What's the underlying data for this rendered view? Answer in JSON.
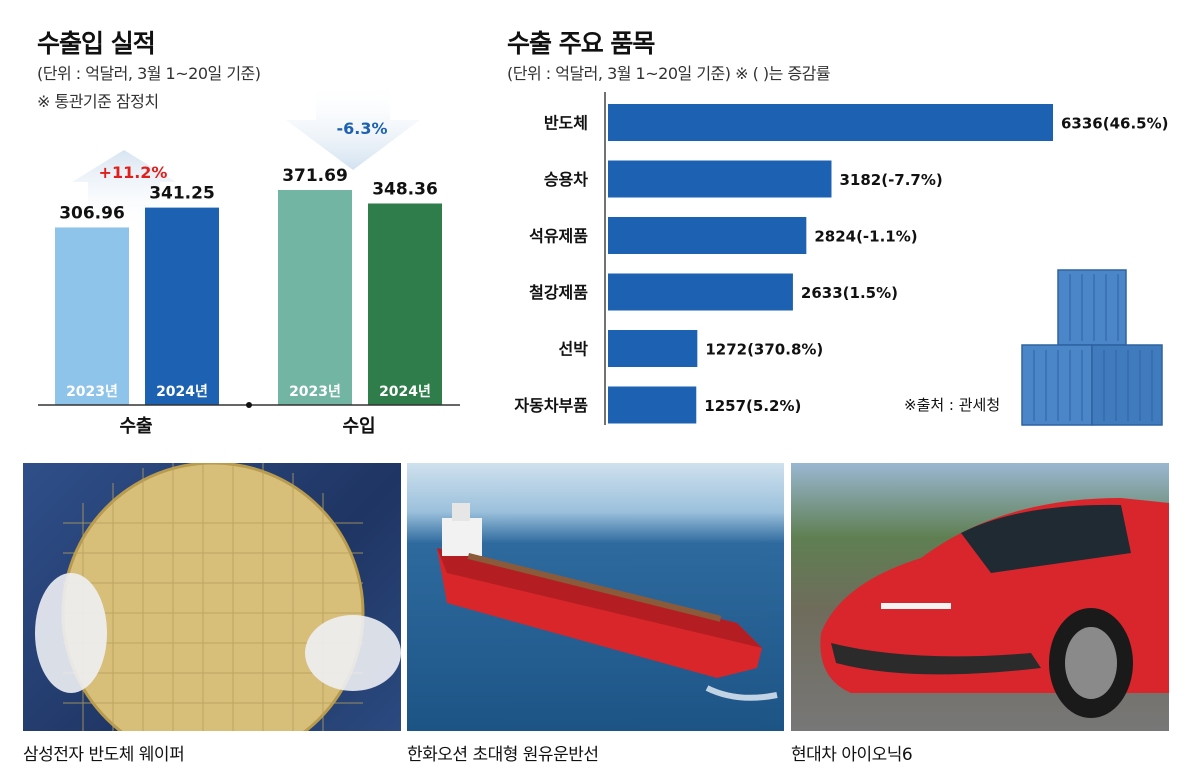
{
  "left": {
    "title": "수출입 실적",
    "unit": "(단위 : 억달러, 3월 1~20일 기준)",
    "note": "※ 통관기준 잠정치",
    "export_label": "수출",
    "import_label": "수입",
    "export_change": "+11.2%",
    "import_change": "-6.3%"
  },
  "right": {
    "title": "수출 주요 품목",
    "unit": "(단위 : 억달러, 3월 1~20일 기준)  ※ ( )는 증감률",
    "source": "※출처 : 관세청"
  },
  "chart_data": [
    {
      "type": "bar",
      "title": "수출입 실적",
      "categories": [
        "수출",
        "수입"
      ],
      "series": [
        {
          "name": "2023년",
          "values": [
            306.96,
            371.69
          ]
        },
        {
          "name": "2024년",
          "values": [
            341.25,
            348.36
          ]
        }
      ],
      "annotations": [
        "+11.2%",
        "-6.3%"
      ],
      "colors": {
        "export_2023": "#8ec3ea",
        "export_2024": "#1d62b2",
        "import_2023": "#73b5a3",
        "import_2024": "#2f7d4a"
      }
    },
    {
      "type": "bar",
      "orientation": "horizontal",
      "title": "수출 주요 품목",
      "categories": [
        "반도체",
        "승용차",
        "석유제품",
        "철강제품",
        "선박",
        "자동차부품"
      ],
      "values": [
        6336,
        3182,
        2824,
        2633,
        1272,
        1257
      ],
      "changes": [
        "46.5%",
        "-7.7%",
        "-1.1%",
        "1.5%",
        "370.8%",
        "5.2%"
      ],
      "labels": [
        "6336(46.5%)",
        "3182(-7.7%)",
        "2824(-1.1%)",
        "2633(1.5%)",
        "1272(370.8%)",
        "1257(5.2%)"
      ],
      "color": "#1d62b2"
    }
  ],
  "captions": [
    "삼성전자 반도체 웨이퍼",
    "한화오션 초대형 원유운반선",
    "현대차 아이오닉6"
  ]
}
